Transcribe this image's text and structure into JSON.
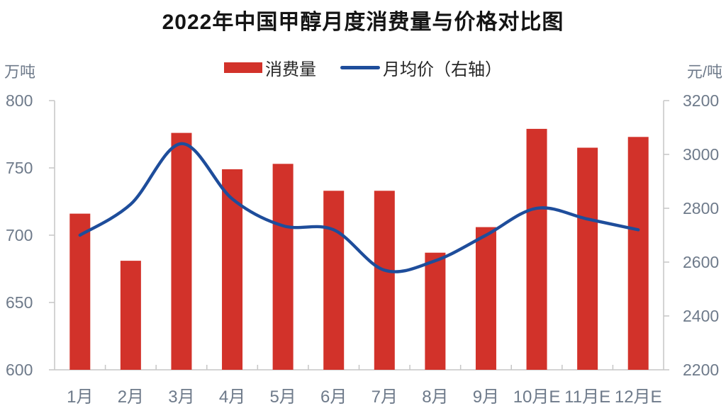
{
  "chart_data": {
    "type": "combo-bar-line",
    "title": "2022年中国甲醇月度消费量与价格对比图",
    "categories": [
      "1月",
      "2月",
      "3月",
      "4月",
      "5月",
      "6月",
      "7月",
      "8月",
      "9月",
      "10月E",
      "11月E",
      "12月E"
    ],
    "series": [
      {
        "name": "消费量",
        "type": "bar",
        "axis": "left",
        "color": "#d2322a",
        "values": [
          716,
          681,
          776,
          749,
          753,
          733,
          733,
          687,
          706,
          779,
          765,
          773
        ]
      },
      {
        "name": "月均价（右轴）",
        "type": "line",
        "axis": "right",
        "color": "#1e4d9b",
        "values": [
          2700,
          2815,
          3040,
          2835,
          2735,
          2720,
          2570,
          2605,
          2700,
          2800,
          2760,
          2720
        ]
      }
    ],
    "left_axis": {
      "label": "万吨",
      "min": 600,
      "max": 800,
      "ticks": [
        800,
        750,
        700,
        650,
        600
      ]
    },
    "right_axis": {
      "label": "元/吨",
      "min": 2200,
      "max": 3200,
      "ticks": [
        3200,
        3000,
        2800,
        2600,
        2400,
        2200
      ]
    },
    "grid": false,
    "legend_position": "top-center",
    "styles": {
      "axis_line_color": "#c6c6c6",
      "tick_label_color": "#6e7a8a",
      "bar_color": "#d2322a",
      "line_color": "#1e4d9b"
    }
  }
}
